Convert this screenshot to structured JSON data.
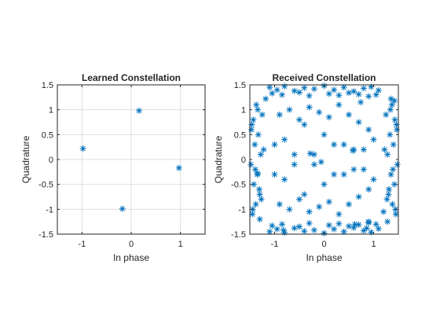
{
  "figure": {
    "background": "#ffffff"
  },
  "chart_data": [
    {
      "type": "scatter",
      "title": "Learned Constellation",
      "xlabel": "In phase",
      "ylabel": "Quadrature",
      "xlim": [
        -1.5,
        1.5
      ],
      "ylim": [
        -1.5,
        1.5
      ],
      "xticks": [
        -1,
        0,
        1
      ],
      "xtick_labels": [
        "-1",
        "0",
        "1"
      ],
      "yticks": [
        -1.5,
        -1,
        -0.5,
        0,
        0.5,
        1,
        1.5
      ],
      "ytick_labels": [
        "-1.5",
        "-1",
        "-0.5",
        "0",
        "0.5",
        "1",
        "1.5"
      ],
      "grid": true,
      "marker": "asterisk",
      "color": "#0072bd",
      "series": [
        {
          "x": [
            -0.98,
            0.16,
            0.97,
            -0.18
          ],
          "y": [
            0.22,
            0.98,
            -0.17,
            -0.99
          ]
        }
      ]
    },
    {
      "type": "scatter",
      "title": "Received Constellation",
      "xlabel": "In phase",
      "ylabel": "Quadrature",
      "xlim": [
        -1.5,
        1.5
      ],
      "ylim": [
        -1.5,
        1.5
      ],
      "xticks": [
        -1,
        0,
        1
      ],
      "xtick_labels": [
        "-1",
        "0",
        "1"
      ],
      "yticks": [
        -1.5,
        -1,
        -0.5,
        0,
        0.5,
        1,
        1.5
      ],
      "ytick_labels": [
        "-1.5",
        "-1",
        "-0.5",
        "0",
        "0.5",
        "1",
        "1.5"
      ],
      "grid": false,
      "marker": "asterisk",
      "color": "#0072bd",
      "series": [
        {
          "x": [
            -1.45,
            -1.38,
            -1.3,
            -1.42,
            -1.35,
            -1.48,
            -1.28,
            -1.4,
            -1.33,
            -1.46,
            -1.25,
            -1.37,
            -1.44,
            -1.31,
            -1.39,
            -1.22,
            -1.47,
            -1.34,
            -1.27,
            -1.43,
            1.45,
            1.38,
            1.3,
            1.42,
            1.35,
            1.48,
            1.28,
            1.4,
            1.33,
            1.46,
            1.25,
            1.37,
            1.44,
            1.31,
            1.39,
            1.22,
            1.47,
            1.34,
            1.27,
            1.43,
            -1.1,
            -0.95,
            -0.8,
            -0.6,
            -0.4,
            -0.2,
            0.0,
            0.2,
            0.4,
            0.6,
            0.8,
            0.95,
            1.1,
            -1.05,
            -0.85,
            -0.5,
            -0.3,
            0.1,
            0.3,
            0.5,
            0.7,
            0.9,
            1.05,
            -1.1,
            -0.95,
            -0.8,
            -0.6,
            -0.4,
            -0.2,
            0.0,
            0.2,
            0.4,
            0.6,
            0.8,
            0.95,
            1.1,
            -1.05,
            -0.85,
            -0.5,
            -0.3,
            0.1,
            0.3,
            0.5,
            0.7,
            0.9,
            1.05,
            -0.9,
            -0.7,
            -0.5,
            -0.3,
            -0.1,
            0.1,
            0.3,
            0.5,
            0.7,
            0.9,
            -0.8,
            -0.4,
            0.0,
            0.4,
            0.8,
            -0.6,
            -0.2,
            0.2,
            0.6,
            -1.0,
            1.0,
            -0.9,
            -0.7,
            -0.5,
            -0.3,
            -0.1,
            0.1,
            0.3,
            0.5,
            0.7,
            0.9,
            -0.8,
            -0.4,
            0.0,
            0.4,
            0.8,
            -0.6,
            -0.2,
            0.2,
            0.6,
            -1.0,
            1.0,
            1.42,
            1.35,
            1.28,
            0.86,
            0.74,
            -0.82,
            -1.18,
            -1.3,
            1.2,
            0.62,
            0.9,
            -0.06,
            -0.28,
            -1.34,
            0.58
          ],
          "y": [
            -1.1,
            -0.9,
            -0.7,
            -0.5,
            -0.3,
            -0.1,
            0.1,
            0.3,
            0.5,
            0.7,
            0.9,
            1.1,
            -1.0,
            -0.6,
            -0.2,
            0.2,
            0.6,
            1.0,
            -0.8,
            0.8,
            -1.1,
            -0.9,
            -0.7,
            -0.5,
            -0.3,
            -0.1,
            0.1,
            0.3,
            0.5,
            0.7,
            0.9,
            1.1,
            -1.0,
            -0.6,
            -0.2,
            0.2,
            0.6,
            1.0,
            -0.8,
            0.8,
            1.45,
            1.4,
            1.47,
            1.38,
            1.44,
            1.42,
            1.48,
            1.4,
            1.45,
            1.37,
            1.43,
            1.46,
            1.39,
            1.33,
            1.3,
            1.35,
            1.28,
            1.32,
            1.29,
            1.34,
            1.31,
            1.27,
            1.3,
            -1.45,
            -1.4,
            -1.47,
            -1.38,
            -1.44,
            -1.42,
            -1.48,
            -1.4,
            -1.45,
            -1.37,
            -1.43,
            -1.46,
            -1.39,
            -1.33,
            -1.3,
            -1.35,
            -1.28,
            -1.32,
            -1.29,
            -1.34,
            -1.31,
            -1.27,
            -1.3,
            0.9,
            1.0,
            0.8,
            1.05,
            0.95,
            0.85,
            1.1,
            0.9,
            0.75,
            0.6,
            0.4,
            0.7,
            0.5,
            0.3,
            0.2,
            -0.1,
            0.1,
            -0.3,
            -0.2,
            0.3,
            -0.4,
            -0.9,
            -1.0,
            -0.8,
            -1.05,
            -0.95,
            -0.85,
            -1.1,
            -0.9,
            -0.75,
            -0.6,
            -0.4,
            -0.7,
            -0.5,
            -0.3,
            -0.2,
            0.1,
            -0.1,
            0.3,
            0.2,
            -0.3,
            0.4,
            1.18,
            1.22,
            -1.25,
            -1.38,
            1.15,
            -1.42,
            1.22,
            -1.2,
            -1.05,
            -1.3,
            -1.25,
            -0.05,
            0.12,
            -0.28,
            0.18
          ]
        }
      ]
    }
  ]
}
